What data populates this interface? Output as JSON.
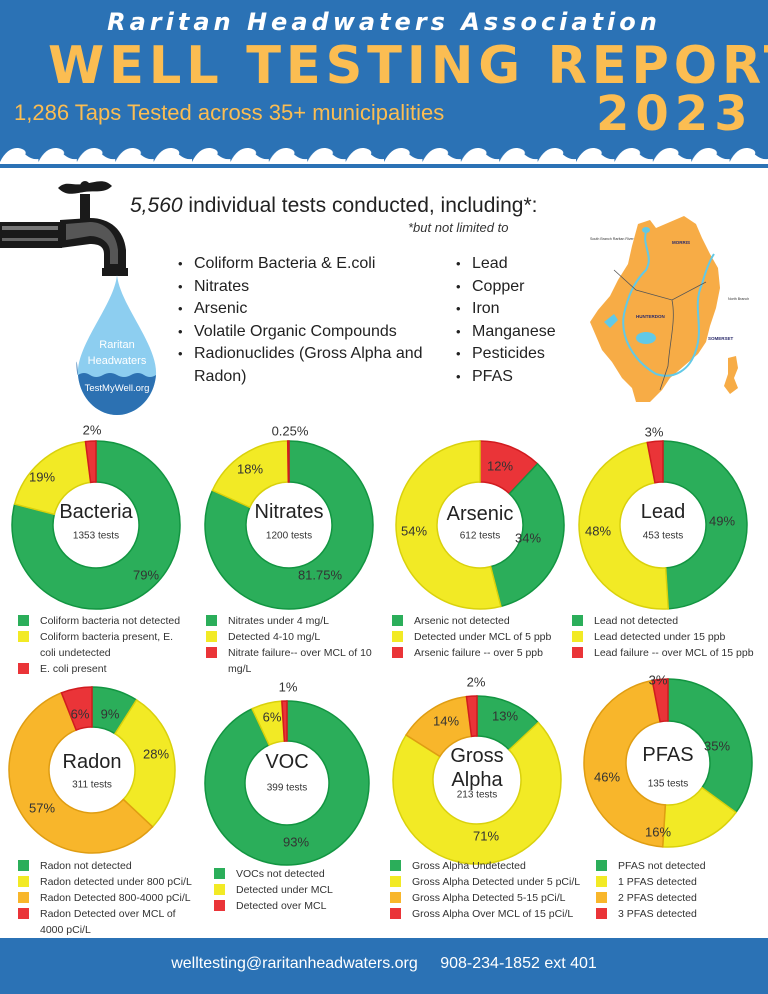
{
  "header": {
    "org_name": "Raritan Headwaters Association",
    "title": "WELL TESTING REPORT",
    "subtitle": "1,286 Taps Tested across 35+ municipalities",
    "year": "2023"
  },
  "intro": {
    "tests_count": "5,560",
    "tests_text": " individual tests conducted, including*:",
    "footnote": "*but not limited to",
    "list_left": [
      "Coliform Bacteria & E.coli",
      "Nitrates",
      "Arsenic",
      "Volatile Organic Compounds",
      "Radionuclides (Gross Alpha and Radon)"
    ],
    "list_right": [
      "Lead",
      "Copper",
      "Iron",
      "Manganese",
      "Pesticides",
      "PFAS"
    ],
    "drop": {
      "line1": "Raritan",
      "line2": "Headwaters",
      "url": "TestMyWell.org"
    },
    "map_labels": {
      "morris": "MORRIS",
      "hunterdon": "HUNTERDON",
      "somerset": "SOMERSET",
      "south_branch": "South Branch Raritan River",
      "north_branch": "North Branch"
    }
  },
  "colors": {
    "header_bg": "#2b72b5",
    "accent": "#fbbd52",
    "green": "#2bae5a",
    "yellow": "#f2ea25",
    "orange": "#f8b62b",
    "red": "#ea3438",
    "map": "#f7ac46",
    "river": "#62c9e6"
  },
  "chart_data": [
    {
      "type": "pie",
      "title": "Bacteria",
      "subtitle": "1353 tests",
      "categories": [
        "Coliform bacteria not detected",
        "Coliform bacteria present, E. coli undetected",
        "E. coli present"
      ],
      "values": [
        79,
        19,
        2
      ],
      "labels": [
        "79%",
        "19%",
        "2%"
      ],
      "colors": [
        "green",
        "yellow",
        "red"
      ],
      "legend_position": "bottom"
    },
    {
      "type": "pie",
      "title": "Nitrates",
      "subtitle": "1200 tests",
      "categories": [
        "Nitrates under 4 mg/L",
        "Detected 4-10 mg/L",
        "Nitrate failure-- over MCL of 10 mg/L"
      ],
      "values": [
        81.75,
        18,
        0.25
      ],
      "labels": [
        "81.75%",
        "18%",
        "0.25%"
      ],
      "colors": [
        "green",
        "yellow",
        "red"
      ],
      "legend_position": "bottom"
    },
    {
      "type": "pie",
      "title": "Arsenic",
      "subtitle": "612 tests",
      "categories": [
        "Arsenic not detected",
        "Detected under MCL of 5 ppb",
        "Arsenic failure -- over 5 ppb"
      ],
      "values": [
        34,
        54,
        12
      ],
      "labels": [
        "34%",
        "54%",
        "12%"
      ],
      "colors": [
        "green",
        "yellow",
        "red"
      ],
      "legend_position": "bottom"
    },
    {
      "type": "pie",
      "title": "Lead",
      "subtitle": "453 tests",
      "categories": [
        "Lead not detected",
        "Lead detected under 15 ppb",
        "Lead failure -- over MCL of 15 ppb"
      ],
      "values": [
        49,
        48,
        3
      ],
      "labels": [
        "49%",
        "48%",
        "3%"
      ],
      "colors": [
        "green",
        "yellow",
        "red"
      ],
      "legend_position": "bottom"
    },
    {
      "type": "pie",
      "title": "Radon",
      "subtitle": "311 tests",
      "categories": [
        "Radon not detected",
        "Radon detected under 800 pCi/L",
        "Radon Detected 800-4000 pCi/L",
        "Radon Detected over MCL of 4000 pCi/L"
      ],
      "values": [
        9,
        28,
        57,
        6
      ],
      "labels": [
        "9%",
        "28%",
        "57%",
        "6%"
      ],
      "colors": [
        "green",
        "yellow",
        "orange",
        "red"
      ],
      "legend_position": "bottom"
    },
    {
      "type": "pie",
      "title": "VOC",
      "subtitle": "399 tests",
      "categories": [
        "VOCs not detected",
        "Detected under MCL",
        "Detected over MCL"
      ],
      "values": [
        93,
        6,
        1
      ],
      "labels": [
        "93%",
        "6%",
        "1%"
      ],
      "colors": [
        "green",
        "yellow",
        "red"
      ],
      "legend_position": "bottom"
    },
    {
      "type": "pie",
      "title": "Gross Alpha",
      "subtitle": "213 tests",
      "categories": [
        "Gross Alpha Undetected",
        "Gross Alpha Detected under 5 pCi/L",
        "Gross Alpha Detected 5-15 pCi/L",
        "Gross Alpha Over MCL of 15 pCi/L"
      ],
      "values": [
        13,
        71,
        14,
        2
      ],
      "labels": [
        "13%",
        "71%",
        "14%",
        "2%"
      ],
      "colors": [
        "green",
        "yellow",
        "orange",
        "red"
      ],
      "legend_position": "bottom"
    },
    {
      "type": "pie",
      "title": "PFAS",
      "subtitle": "135 tests",
      "categories": [
        "PFAS not detected",
        "1 PFAS detected",
        "2 PFAS detected",
        "3 PFAS detected"
      ],
      "values": [
        35,
        16,
        46,
        3
      ],
      "labels": [
        "35%",
        "16%",
        "46%",
        "3%"
      ],
      "colors": [
        "green",
        "yellow",
        "orange",
        "red"
      ],
      "legend_position": "bottom"
    }
  ],
  "footer": {
    "email": "welltesting@raritanheadwaters.org",
    "phone": "908-234-1852 ext 401"
  }
}
